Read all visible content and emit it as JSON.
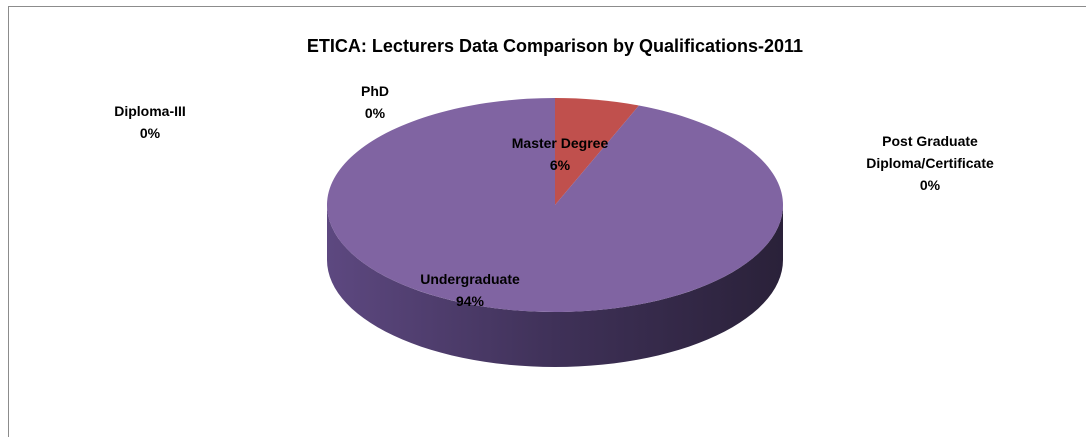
{
  "chart_data": {
    "type": "pie3d",
    "title": "ETICA: Lecturers Data Comparison by Qualifications-2011",
    "categories": [
      "Master Degree",
      "Post Graduate Diploma/Certificate",
      "Undergraduate",
      "Diploma-III",
      "PhD"
    ],
    "values": [
      6,
      0,
      94,
      0,
      0
    ],
    "value_labels": [
      "6%",
      "0%",
      "94%",
      "0%",
      "0%"
    ],
    "colors": [
      "#c0504d",
      "#9bbb59",
      "#8064a2",
      "#4bacc6",
      "#f79646"
    ]
  }
}
